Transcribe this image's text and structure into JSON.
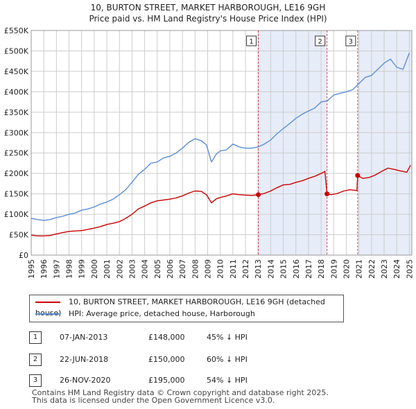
{
  "title_line1": "10, BURTON STREET, MARKET HARBOROUGH, LE16 9GH",
  "title_line2": "Price paid vs. HM Land Registry's House Price Index (HPI)",
  "legend": {
    "red_label": "10, BURTON STREET, MARKET HARBOROUGH, LE16 9GH (detached house)",
    "blue_label": "HPI: Average price, detached house, Harborough"
  },
  "colors": {
    "red": "#cc0000",
    "blue": "#5b8ed6",
    "shade": "#e6ecf8",
    "grid": "#cccccc"
  },
  "sales": [
    {
      "num": "1",
      "date": "07-JAN-2013",
      "price": "£148,000",
      "pct": "45% ↓ HPI"
    },
    {
      "num": "2",
      "date": "22-JUN-2018",
      "price": "£150,000",
      "pct": "60% ↓ HPI"
    },
    {
      "num": "3",
      "date": "26-NOV-2020",
      "price": "£195,000",
      "pct": "54% ↓ HPI"
    }
  ],
  "footer": {
    "line1": "Contains HM Land Registry data © Crown copyright and database right 2025.",
    "line2": "This data is licensed under the Open Government Licence v3.0."
  },
  "chart_data": {
    "type": "line",
    "title": "10, BURTON STREET, MARKET HARBOROUGH, LE16 9GH — Price paid vs. HM Land Registry's House Price Index (HPI)",
    "xlabel": "",
    "ylabel": "",
    "xlim": [
      1995,
      2025.2
    ],
    "ylim": [
      0,
      550000
    ],
    "y_ticks": [
      0,
      50000,
      100000,
      150000,
      200000,
      250000,
      300000,
      350000,
      400000,
      450000,
      500000,
      550000
    ],
    "y_tick_labels": [
      "£0",
      "£50K",
      "£100K",
      "£150K",
      "£200K",
      "£250K",
      "£300K",
      "£350K",
      "£400K",
      "£450K",
      "£500K",
      "£550K"
    ],
    "x_ticks": [
      1995,
      1996,
      1997,
      1998,
      1999,
      2000,
      2001,
      2002,
      2003,
      2004,
      2005,
      2006,
      2007,
      2008,
      2009,
      2010,
      2011,
      2012,
      2013,
      2014,
      2015,
      2016,
      2017,
      2018,
      2019,
      2020,
      2021,
      2022,
      2023,
      2024,
      2025
    ],
    "grid": true,
    "sale_markers": [
      {
        "label": "1",
        "x": 2013.02,
        "y": 148000
      },
      {
        "label": "2",
        "x": 2018.47,
        "y": 150000
      },
      {
        "label": "3",
        "x": 2020.9,
        "y": 195000
      }
    ],
    "shaded_ranges": [
      [
        2013.02,
        2018.47
      ],
      [
        2020.9,
        2025.2
      ]
    ],
    "series": [
      {
        "name": "HPI: Average price, detached house, Harborough",
        "color": "#5b8ed6",
        "x": [
          1995.0,
          1995.5,
          1996.0,
          1996.5,
          1997.0,
          1997.5,
          1998.0,
          1998.5,
          1999.0,
          1999.5,
          2000.0,
          2000.5,
          2001.0,
          2001.5,
          2002.0,
          2002.5,
          2003.0,
          2003.5,
          2004.0,
          2004.5,
          2005.0,
          2005.5,
          2006.0,
          2006.5,
          2007.0,
          2007.5,
          2008.0,
          2008.5,
          2008.9,
          2009.3,
          2009.7,
          2010.0,
          2010.5,
          2011.0,
          2011.5,
          2012.0,
          2012.5,
          2013.0,
          2013.5,
          2014.0,
          2014.5,
          2015.0,
          2015.5,
          2016.0,
          2016.5,
          2017.0,
          2017.5,
          2018.0,
          2018.5,
          2019.0,
          2019.5,
          2020.0,
          2020.5,
          2021.0,
          2021.5,
          2022.0,
          2022.5,
          2023.0,
          2023.5,
          2024.0,
          2024.5,
          2025.0
        ],
        "values": [
          90000,
          87000,
          85000,
          87000,
          92000,
          95000,
          100000,
          103000,
          110000,
          113000,
          118000,
          125000,
          130000,
          137000,
          148000,
          160000,
          178000,
          198000,
          210000,
          225000,
          228000,
          238000,
          242000,
          250000,
          262000,
          276000,
          285000,
          280000,
          270000,
          228000,
          248000,
          255000,
          258000,
          272000,
          265000,
          262000,
          262000,
          265000,
          272000,
          282000,
          297000,
          310000,
          322000,
          335000,
          345000,
          353000,
          360000,
          375000,
          378000,
          392000,
          396000,
          400000,
          405000,
          420000,
          435000,
          440000,
          455000,
          470000,
          480000,
          460000,
          455000,
          495000
        ]
      },
      {
        "name": "10, BURTON STREET, MARKET HARBOROUGH, LE16 9GH (detached house)",
        "color": "#cc0000",
        "x": [
          1995.0,
          1995.5,
          1996.0,
          1996.5,
          1997.0,
          1997.5,
          1998.0,
          1998.5,
          1999.0,
          1999.5,
          2000.0,
          2000.5,
          2001.0,
          2001.5,
          2002.0,
          2002.5,
          2003.0,
          2003.5,
          2004.0,
          2004.5,
          2005.0,
          2005.5,
          2006.0,
          2006.5,
          2007.0,
          2007.5,
          2008.0,
          2008.5,
          2008.9,
          2009.3,
          2009.7,
          2010.0,
          2010.5,
          2011.0,
          2011.5,
          2012.0,
          2012.5,
          2013.02,
          2013.5,
          2014.0,
          2014.5,
          2015.0,
          2015.5,
          2016.0,
          2016.5,
          2017.0,
          2017.5,
          2018.0,
          2018.3,
          2018.47,
          2018.8,
          2019.3,
          2019.8,
          2020.3,
          2020.85,
          2020.9,
          2021.3,
          2021.8,
          2022.3,
          2022.8,
          2023.3,
          2023.8,
          2024.3,
          2024.8,
          2025.1
        ],
        "values": [
          49000,
          47000,
          47000,
          48000,
          52000,
          55000,
          58000,
          59000,
          60000,
          63000,
          66000,
          70000,
          75000,
          78000,
          82000,
          90000,
          100000,
          113000,
          120000,
          128000,
          133000,
          135000,
          137000,
          140000,
          145000,
          152000,
          157000,
          156000,
          148000,
          128000,
          138000,
          141000,
          145000,
          150000,
          148000,
          147000,
          146000,
          148000,
          151000,
          157000,
          165000,
          172000,
          173000,
          178000,
          182000,
          188000,
          193000,
          200000,
          205000,
          150000,
          148000,
          151000,
          157000,
          160000,
          158000,
          195000,
          188000,
          190000,
          196000,
          205000,
          213000,
          210000,
          206000,
          203000,
          220000
        ]
      }
    ]
  }
}
